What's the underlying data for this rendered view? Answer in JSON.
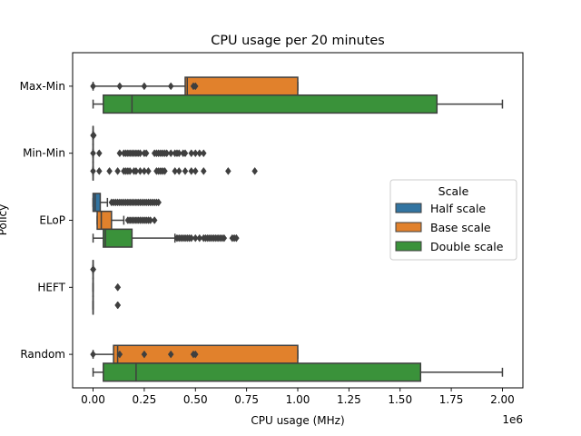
{
  "chart_data": {
    "type": "boxplot",
    "orientation": "horizontal",
    "title": "CPU usage per 20 minutes",
    "xlabel": "CPU usage (MHz)",
    "ylabel": "Policy",
    "x_scale_label": "1e6",
    "x_ticks": [
      "0.00",
      "0.25",
      "0.50",
      "0.75",
      "1.00",
      "1.25",
      "1.50",
      "1.75",
      "2.00"
    ],
    "x_tick_values": [
      0,
      0.25,
      0.5,
      0.75,
      1.0,
      1.25,
      1.5,
      1.75,
      2.0
    ],
    "xlim": [
      -0.1,
      2.1
    ],
    "categories": [
      "Max-Min",
      "Min-Min",
      "ELoP",
      "HEFT",
      "Random"
    ],
    "legend": {
      "title": "Scale",
      "placement": "center-right"
    },
    "series": [
      {
        "name": "Half scale",
        "color": "#3274a1",
        "boxes": [
          null,
          {
            "whislo": 0,
            "q1": 0,
            "med": 0,
            "q3": 0,
            "whishi": 0,
            "fliers": [
              0.0,
              0.001,
              0.002,
              0.003
            ]
          },
          {
            "whislo": 0.0,
            "q1": 0.0,
            "med": 0.01,
            "q3": 0.035,
            "whishi": 0.07,
            "fliers": [
              0.09,
              0.1,
              0.11,
              0.12,
              0.13,
              0.14,
              0.15,
              0.16,
              0.17,
              0.18,
              0.19,
              0.2,
              0.21,
              0.22,
              0.23,
              0.24,
              0.25,
              0.26,
              0.27,
              0.28,
              0.29,
              0.3,
              0.31,
              0.32
            ]
          },
          {
            "whislo": 0,
            "q1": 0,
            "med": 0,
            "q3": 0,
            "whishi": 0,
            "fliers": [
              0.0,
              0.001
            ]
          },
          null
        ]
      },
      {
        "name": "Base scale",
        "color": "#e1812c",
        "boxes": [
          {
            "whislo": 0.0,
            "q1": 0.45,
            "med": 0.46,
            "q3": 1.0,
            "whishi": 1.0,
            "fliers": [
              0.0,
              0.13,
              0.25,
              0.38,
              0.49,
              0.5
            ]
          },
          {
            "whislo": 0,
            "q1": 0,
            "med": 0,
            "q3": 0,
            "whishi": 0,
            "fliers": [
              0.0,
              0.03,
              0.13,
              0.15,
              0.16,
              0.17,
              0.18,
              0.19,
              0.2,
              0.21,
              0.22,
              0.23,
              0.25,
              0.26,
              0.3,
              0.31,
              0.32,
              0.33,
              0.34,
              0.35,
              0.36,
              0.38,
              0.4,
              0.41,
              0.42,
              0.44,
              0.45,
              0.48,
              0.5,
              0.52,
              0.54
            ]
          },
          {
            "whislo": 0.02,
            "q1": 0.02,
            "med": 0.04,
            "q3": 0.09,
            "whishi": 0.15,
            "fliers": [
              0.17,
              0.18,
              0.19,
              0.2,
              0.21,
              0.22,
              0.23,
              0.24,
              0.25,
              0.26,
              0.27,
              0.28,
              0.3
            ]
          },
          {
            "whislo": 0,
            "q1": 0,
            "med": 0,
            "q3": 0,
            "whishi": 0,
            "fliers": [
              0.12,
              0.121
            ]
          },
          {
            "whislo": 0.0,
            "q1": 0.1,
            "med": 0.12,
            "q3": 1.0,
            "whishi": 1.0,
            "fliers": [
              0.0,
              0.13,
              0.25,
              0.38,
              0.49,
              0.5
            ]
          }
        ]
      },
      {
        "name": "Double scale",
        "color": "#3a923a",
        "boxes": [
          {
            "whislo": 0.0,
            "q1": 0.05,
            "med": 0.19,
            "q3": 1.68,
            "whishi": 2.0,
            "fliers": []
          },
          {
            "whislo": 0,
            "q1": 0,
            "med": 0,
            "q3": 0,
            "whishi": 0,
            "fliers": [
              0.0,
              0.03,
              0.08,
              0.12,
              0.15,
              0.16,
              0.17,
              0.18,
              0.2,
              0.21,
              0.23,
              0.25,
              0.27,
              0.31,
              0.32,
              0.33,
              0.34,
              0.35,
              0.4,
              0.42,
              0.45,
              0.48,
              0.5,
              0.54,
              0.66,
              0.79
            ]
          },
          {
            "whislo": 0.0,
            "q1": 0.05,
            "med": 0.06,
            "q3": 0.19,
            "whishi": 0.4,
            "fliers": [
              0.41,
              0.42,
              0.43,
              0.44,
              0.45,
              0.46,
              0.47,
              0.48,
              0.5,
              0.52,
              0.54,
              0.55,
              0.56,
              0.57,
              0.58,
              0.59,
              0.6,
              0.61,
              0.62,
              0.63,
              0.64,
              0.68,
              0.69,
              0.7
            ]
          },
          {
            "whislo": 0,
            "q1": 0,
            "med": 0,
            "q3": 0,
            "whishi": 0,
            "fliers": [
              0.12,
              0.121
            ]
          },
          {
            "whislo": 0.0,
            "q1": 0.05,
            "med": 0.21,
            "q3": 1.6,
            "whishi": 2.0,
            "fliers": []
          }
        ]
      }
    ]
  }
}
